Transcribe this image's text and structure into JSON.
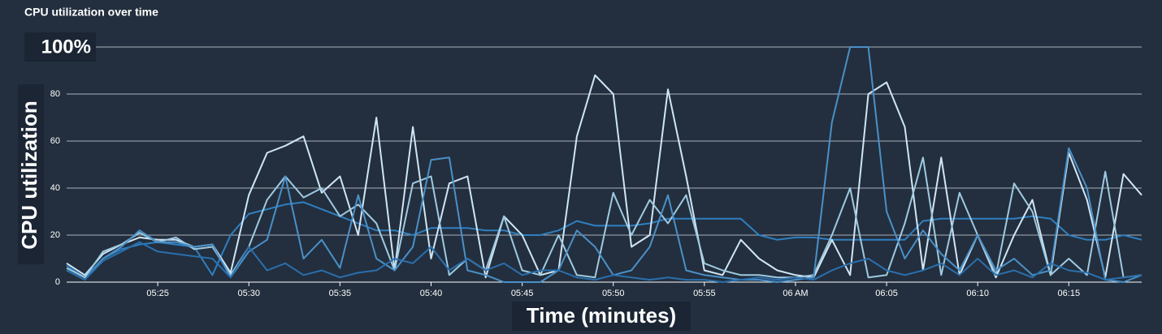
{
  "chart_data": {
    "type": "line",
    "title": "CPU utilization over time",
    "ylabel": "CPU utilization",
    "xlabel": "Time (minutes)",
    "x": [
      "05:20",
      "05:21",
      "05:22",
      "05:23",
      "05:24",
      "05:25",
      "05:26",
      "05:27",
      "05:28",
      "05:29",
      "05:30",
      "05:31",
      "05:32",
      "05:33",
      "05:34",
      "05:35",
      "05:36",
      "05:37",
      "05:38",
      "05:39",
      "05:40",
      "05:41",
      "05:42",
      "05:43",
      "05:44",
      "05:45",
      "05:46",
      "05:47",
      "05:48",
      "05:49",
      "05:50",
      "05:51",
      "05:52",
      "05:53",
      "05:54",
      "05:55",
      "05:56",
      "05:57",
      "05:58",
      "05:59",
      "06:00",
      "06:01",
      "06:02",
      "06:03",
      "06:04",
      "06:05",
      "06:06",
      "06:07",
      "06:08",
      "06:09",
      "06:10",
      "06:11",
      "06:12",
      "06:13",
      "06:14",
      "06:15",
      "06:16",
      "06:17",
      "06:18",
      "06:19"
    ],
    "xlim": [
      "05:20",
      "06:19"
    ],
    "xticks": [
      "05:25",
      "05:30",
      "05:35",
      "05:40",
      "05:45",
      "05:50",
      "05:55",
      {
        "value": "06:00",
        "label": "06 AM"
      },
      "06:05",
      "06:10",
      "06:15"
    ],
    "ylim": [
      0,
      100
    ],
    "yticks": [
      0,
      20,
      40,
      60,
      80,
      {
        "value": 100,
        "label": "100%"
      }
    ],
    "grid": true,
    "series": [
      {
        "color": "#2f7fc1",
        "values": [
          7,
          2,
          10,
          14,
          16,
          17,
          16,
          15,
          3,
          20,
          29,
          31,
          33,
          34,
          31,
          28,
          25,
          22,
          22,
          20,
          23,
          23,
          23,
          22,
          22,
          20,
          20,
          22,
          26,
          24,
          24,
          24,
          25,
          27,
          27,
          27,
          27,
          27,
          20,
          18,
          19,
          19,
          18,
          18,
          18,
          18,
          18,
          26,
          27,
          27,
          27,
          27,
          27,
          28,
          27,
          20,
          18,
          18,
          20,
          18
        ]
      },
      {
        "color": "#d0e6f5",
        "values": [
          8,
          3,
          12,
          16,
          19,
          18,
          18,
          15,
          16,
          4,
          37,
          55,
          58,
          62,
          38,
          45,
          20,
          70,
          5,
          66,
          10,
          42,
          45,
          2,
          28,
          20,
          3,
          5,
          62,
          88,
          80,
          15,
          20,
          82,
          45,
          5,
          3,
          18,
          10,
          5,
          3,
          2,
          18,
          3,
          80,
          85,
          66,
          5,
          53,
          3,
          20,
          2,
          20,
          35,
          3,
          55,
          35,
          2,
          46,
          37
        ]
      },
      {
        "color": "#9ecae1",
        "values": [
          6,
          2,
          13,
          16,
          21,
          17,
          19,
          14,
          15,
          3,
          15,
          35,
          45,
          36,
          40,
          28,
          33,
          25,
          5,
          42,
          45,
          3,
          10,
          5,
          28,
          5,
          3,
          20,
          3,
          2,
          38,
          20,
          35,
          25,
          37,
          8,
          5,
          3,
          3,
          2,
          2,
          3,
          20,
          40,
          2,
          3,
          25,
          53,
          3,
          38,
          20,
          3,
          42,
          30,
          3,
          10,
          3,
          47,
          2,
          3
        ]
      },
      {
        "color": "#4a90c8",
        "values": [
          5,
          1,
          10,
          15,
          22,
          17,
          17,
          15,
          16,
          2,
          13,
          18,
          45,
          10,
          18,
          6,
          37,
          10,
          5,
          15,
          52,
          53,
          5,
          3,
          0,
          0,
          0,
          5,
          22,
          15,
          3,
          5,
          15,
          37,
          5,
          3,
          2,
          1,
          1,
          0,
          1,
          2,
          68,
          100,
          100,
          30,
          10,
          22,
          12,
          5,
          20,
          5,
          10,
          3,
          5,
          57,
          40,
          1,
          0,
          3
        ]
      },
      {
        "color": "#2a6fad",
        "values": [
          5,
          1,
          9,
          13,
          17,
          13,
          12,
          11,
          10,
          2,
          15,
          5,
          8,
          3,
          5,
          2,
          4,
          5,
          10,
          8,
          15,
          5,
          10,
          5,
          8,
          3,
          5,
          5,
          2,
          1,
          3,
          2,
          1,
          2,
          1,
          1,
          0,
          1,
          2,
          1,
          2,
          1,
          5,
          8,
          10,
          5,
          3,
          5,
          8,
          3,
          10,
          3,
          5,
          2,
          8,
          5,
          4,
          1,
          2,
          3
        ]
      }
    ]
  }
}
